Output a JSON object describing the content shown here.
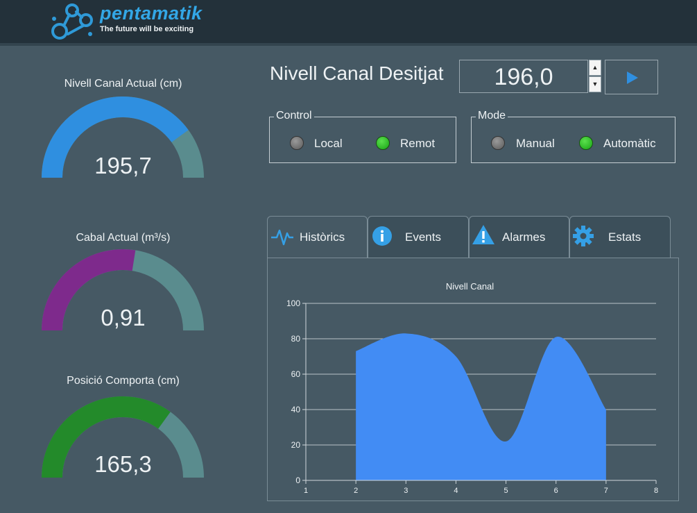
{
  "header": {
    "logo_name": "pentamatik",
    "logo_tagline": "The future will be exciting"
  },
  "gauges": [
    {
      "label": "Nivell Canal Actual (cm)",
      "value": "195,7",
      "fraction": 0.8,
      "color": "#2f8fe0"
    },
    {
      "label": "Cabal Actual (m³/s)",
      "value": "0,91",
      "fraction": 0.55,
      "color": "#7e2a8c"
    },
    {
      "label": "Posició Comporta (cm)",
      "value": "165,3",
      "fraction": 0.7,
      "color": "#238a2a"
    }
  ],
  "setpoint": {
    "title": "Nivell Canal Desitjat",
    "value": "196,0"
  },
  "control": {
    "title": "Control",
    "options": [
      {
        "label": "Local",
        "selected": false
      },
      {
        "label": "Remot",
        "selected": true
      }
    ]
  },
  "mode": {
    "title": "Mode",
    "options": [
      {
        "label": "Manual",
        "selected": false
      },
      {
        "label": "Automàtic",
        "selected": true
      }
    ]
  },
  "tabs": [
    {
      "label": "Històrics",
      "icon": "pulse-icon",
      "active": true
    },
    {
      "label": "Events",
      "icon": "info-icon",
      "active": false
    },
    {
      "label": "Alarmes",
      "icon": "warning-icon",
      "active": false
    },
    {
      "label": "Estats",
      "icon": "gear-icon",
      "active": false
    }
  ],
  "colors": {
    "background": "#465964",
    "header": "#23313a",
    "gauge_track": "#5a8c8e",
    "accent": "#2f8fe0",
    "area": "#428cf4"
  },
  "chart_data": {
    "type": "area",
    "title": "Nivell Canal",
    "x": [
      2,
      3,
      4,
      5,
      6,
      7
    ],
    "values": [
      73,
      83,
      70,
      22,
      81,
      40
    ],
    "xlim": [
      1,
      8
    ],
    "ylim": [
      0,
      100
    ],
    "xticks": [
      1,
      2,
      3,
      4,
      5,
      6,
      7,
      8
    ],
    "yticks": [
      0,
      20,
      40,
      60,
      80,
      100
    ],
    "grid": true,
    "smooth": true
  }
}
